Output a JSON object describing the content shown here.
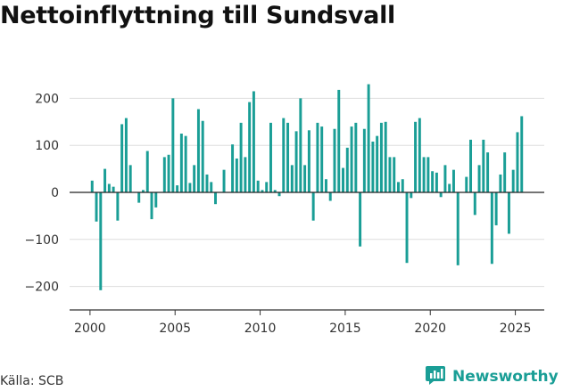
{
  "title": "Nettoinflyttning till Sundsvall",
  "source": "Källa: SCB",
  "brand": {
    "name": "Newsworthy",
    "icon": "newsworthy-logo-icon",
    "color": "#1a9e96"
  },
  "chart_data": {
    "type": "bar",
    "title": "Nettoinflyttning till Sundsvall",
    "xlabel": "",
    "ylabel": "",
    "bar_color": "#1a9e96",
    "grid": true,
    "xlim": [
      1998.8,
      2026.7
    ],
    "ylim": [
      -250,
      250
    ],
    "x_ticks": [
      2000,
      2005,
      2010,
      2015,
      2020,
      2025
    ],
    "y_ticks": [
      -200,
      -100,
      0,
      100,
      200
    ],
    "y_tick_labels": [
      "−200",
      "−100",
      "0",
      "100",
      "200"
    ],
    "x": [
      2000.125,
      2000.375,
      2000.625,
      2000.875,
      2001.125,
      2001.375,
      2001.625,
      2001.875,
      2002.125,
      2002.375,
      2002.625,
      2002.875,
      2003.125,
      2003.375,
      2003.625,
      2003.875,
      2004.125,
      2004.375,
      2004.625,
      2004.875,
      2005.125,
      2005.375,
      2005.625,
      2005.875,
      2006.125,
      2006.375,
      2006.625,
      2006.875,
      2007.125,
      2007.375,
      2007.625,
      2007.875,
      2008.125,
      2008.375,
      2008.625,
      2008.875,
      2009.125,
      2009.375,
      2009.625,
      2009.875,
      2010.125,
      2010.375,
      2010.625,
      2010.875,
      2011.125,
      2011.375,
      2011.625,
      2011.875,
      2012.125,
      2012.375,
      2012.625,
      2012.875,
      2013.125,
      2013.375,
      2013.625,
      2013.875,
      2014.125,
      2014.375,
      2014.625,
      2014.875,
      2015.125,
      2015.375,
      2015.625,
      2015.875,
      2016.125,
      2016.375,
      2016.625,
      2016.875,
      2017.125,
      2017.375,
      2017.625,
      2017.875,
      2018.125,
      2018.375,
      2018.625,
      2018.875,
      2019.125,
      2019.375,
      2019.625,
      2019.875,
      2020.125,
      2020.375,
      2020.625,
      2020.875,
      2021.125,
      2021.375,
      2021.625,
      2021.875,
      2022.125,
      2022.375,
      2022.625,
      2022.875,
      2023.125,
      2023.375,
      2023.625,
      2023.875,
      2024.125,
      2024.375,
      2024.625,
      2024.875,
      2025.125,
      2025.375
    ],
    "values": [
      25,
      -62,
      -208,
      50,
      18,
      12,
      -60,
      145,
      158,
      58,
      0,
      -22,
      5,
      88,
      -57,
      -32,
      0,
      75,
      80,
      200,
      15,
      125,
      120,
      20,
      58,
      177,
      152,
      38,
      22,
      -25,
      0,
      48,
      0,
      102,
      72,
      148,
      75,
      192,
      215,
      25,
      5,
      22,
      148,
      5,
      -8,
      158,
      148,
      58,
      130,
      200,
      58,
      132,
      -60,
      148,
      140,
      28,
      -18,
      135,
      218,
      52,
      95,
      140,
      148,
      -115,
      135,
      230,
      108,
      120,
      148,
      150,
      75,
      75,
      22,
      28,
      -150,
      -12,
      150,
      158,
      75,
      75,
      45,
      42,
      -10,
      58,
      18,
      48,
      -155,
      0,
      33,
      112,
      -48,
      58,
      112,
      85,
      -152,
      -70,
      38,
      85,
      -88,
      48,
      128,
      162
    ]
  }
}
